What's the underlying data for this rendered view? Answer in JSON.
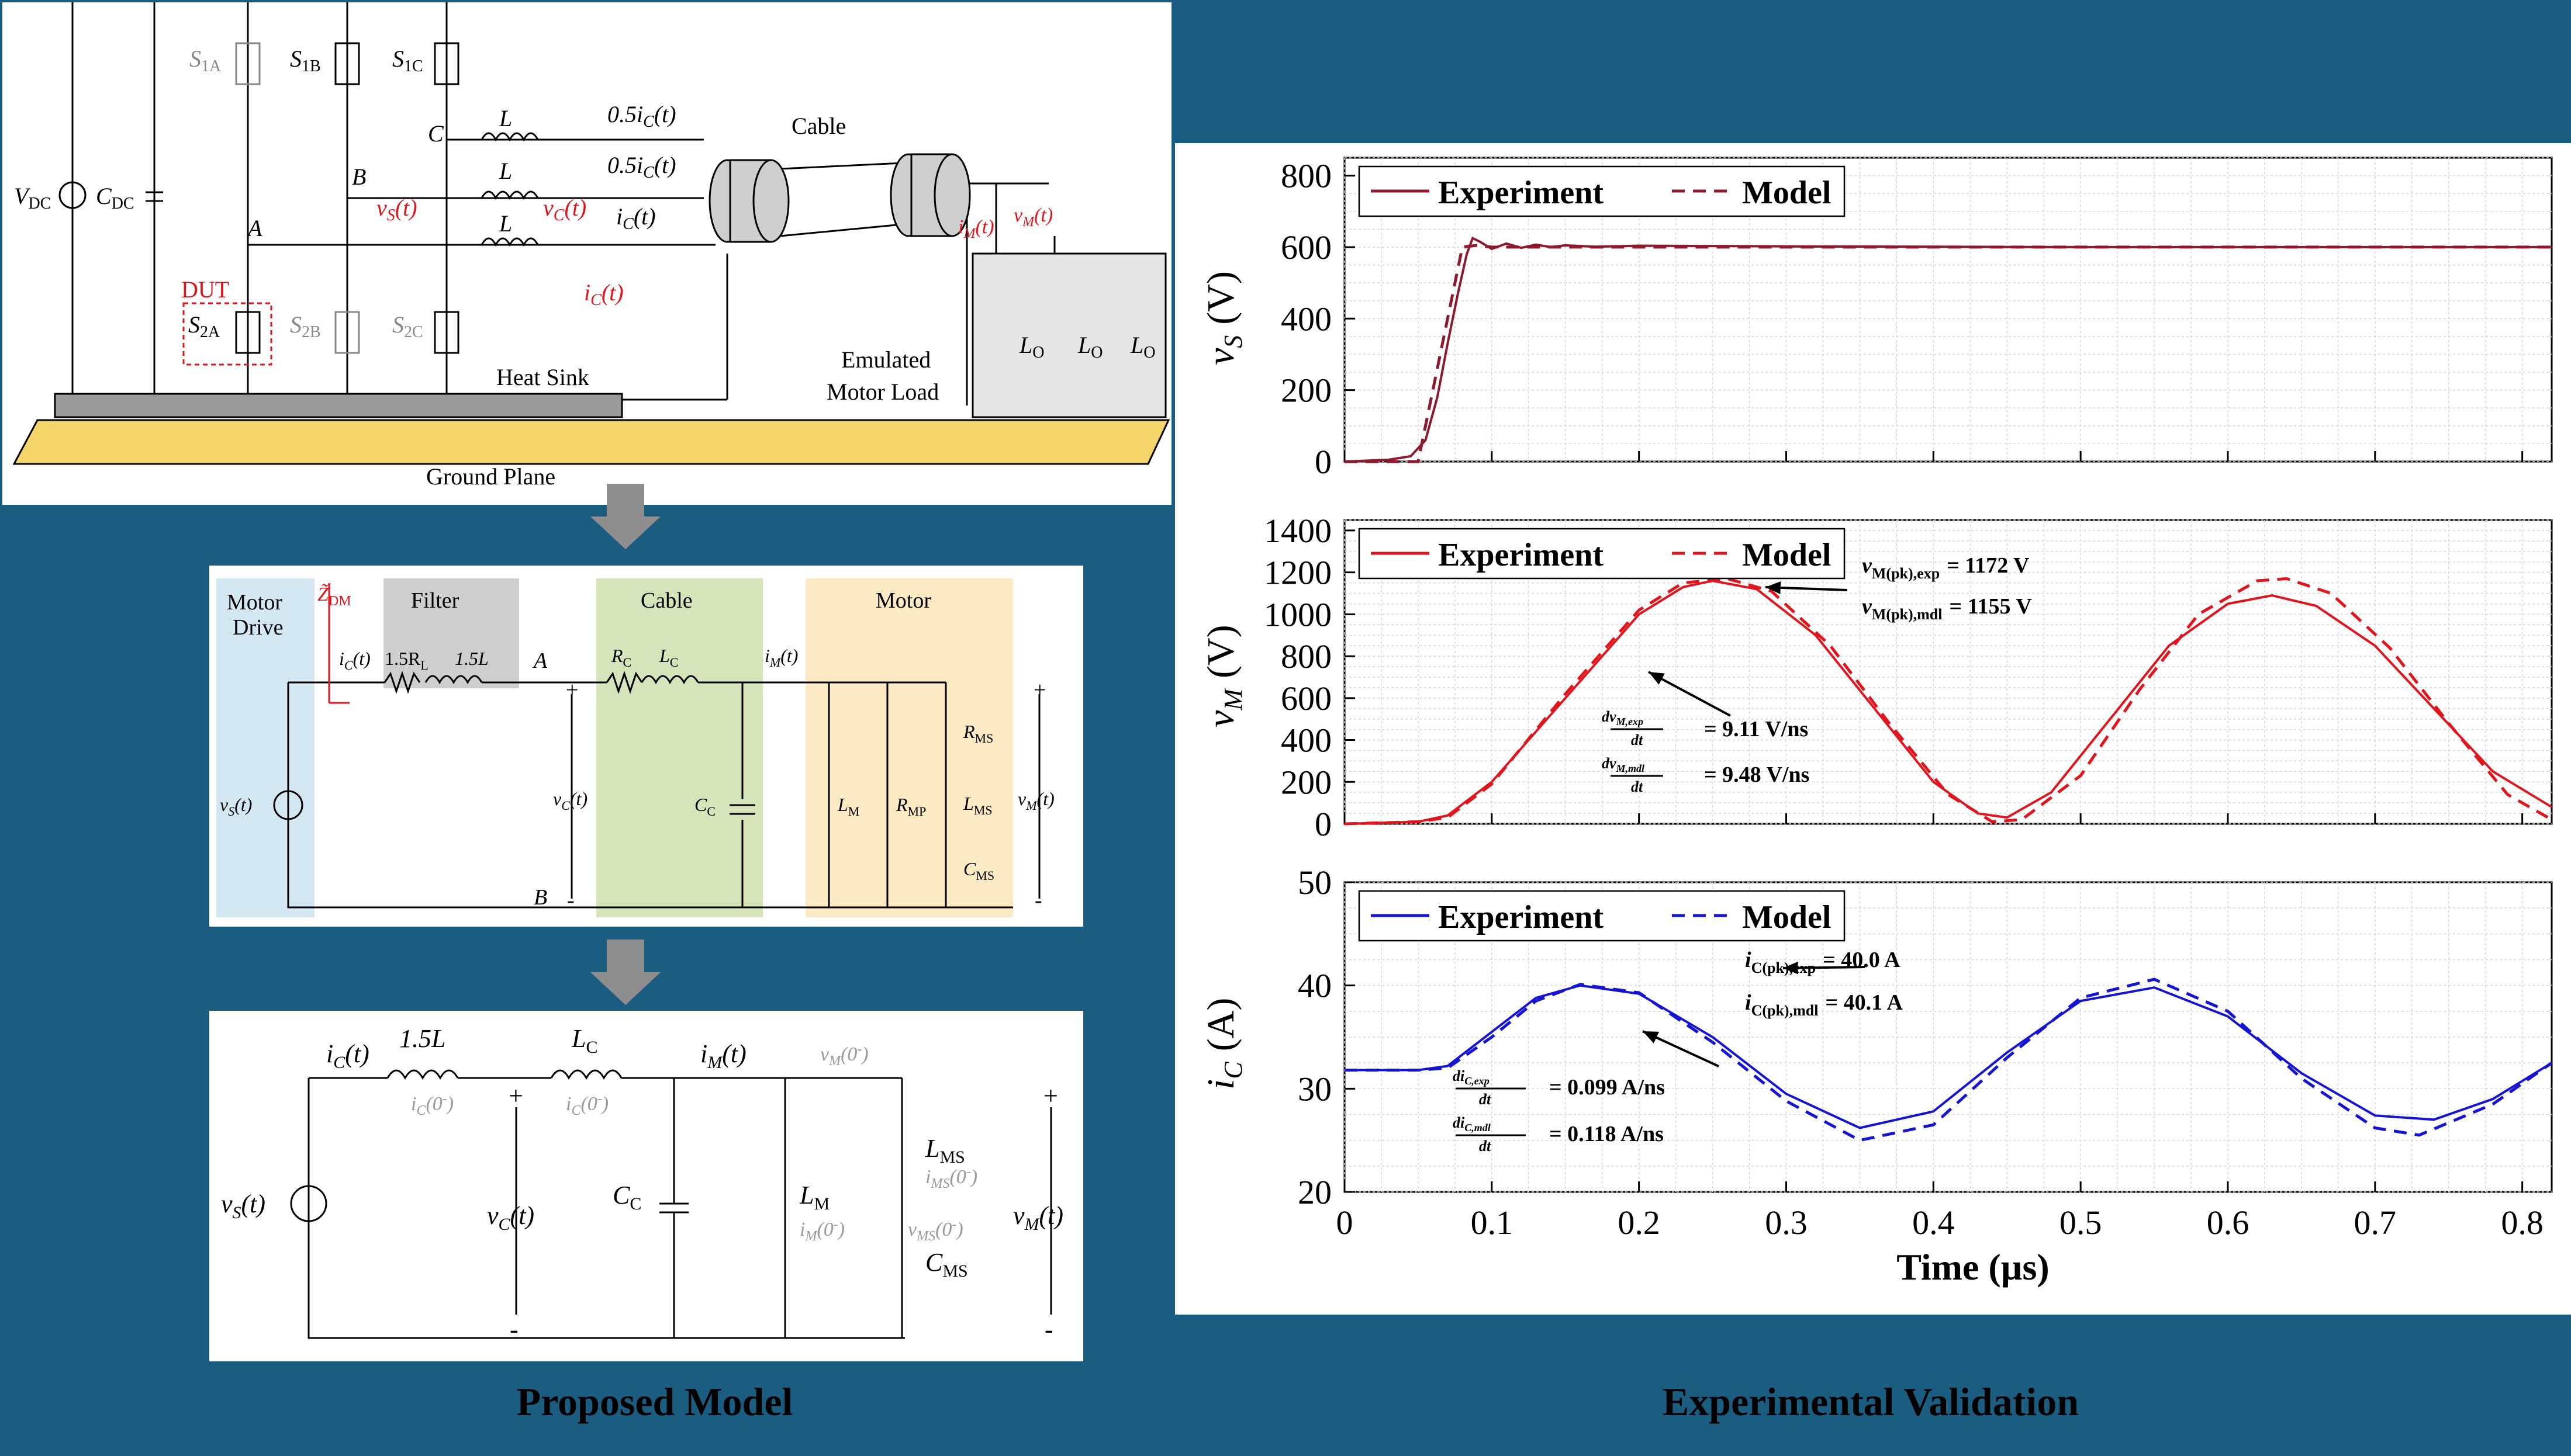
{
  "colors": {
    "background": "#1b5d80",
    "vs_color": "#8b1a2e",
    "vm_color": "#e0161e",
    "ic_color": "#1414d2",
    "annotation_red": "#e0161e",
    "drive_fill": "#d3e8f2",
    "filter_fill": "#cfcfcf",
    "cable_fill": "#d5e4b9",
    "motor_fill": "#fbeac3",
    "ground_fill": "#f5d56a"
  },
  "circuit": {
    "vdc": "V",
    "vdc_sub": "DC",
    "cdc": "C",
    "cdc_sub": "DC",
    "dut": "DUT",
    "s1a": "S",
    "s1a_sub": "1A",
    "s1b": "S",
    "s1b_sub": "1B",
    "s1c": "S",
    "s1c_sub": "1C",
    "s2a": "S",
    "s2a_sub": "2A",
    "s2b": "S",
    "s2b_sub": "2B",
    "s2c": "S",
    "s2c_sub": "2C",
    "node_a": "A",
    "node_b": "B",
    "node_c": "C",
    "inductor": "L",
    "half_ic_1": "0.5i",
    "half_ic_2": "0.5i",
    "ic_label": "i",
    "ic_red": "i",
    "vs_red": "v",
    "vc_red": "v",
    "im_red": "i",
    "vm_red": "v",
    "sub_c": "C",
    "sub_s": "S",
    "sub_m": "M",
    "of_t": "(t)",
    "cable": "Cable",
    "lo": "L",
    "lo_sub": "O",
    "heat_sink": "Heat Sink",
    "emulated_1": "Emulated",
    "emulated_2": "Motor Load",
    "ground_plane": "Ground Plane"
  },
  "model": {
    "motor_drive_1": "Motor",
    "motor_drive_2": "Drive",
    "filter": "Filter",
    "cable": "Cable",
    "motor": "Motor",
    "zdm": "Z̃",
    "zdm_sub": "DM",
    "r_filter": "1.5R",
    "r_filter_sub": "L",
    "l_filter": "1.5L",
    "node_a": "A",
    "node_b": "B",
    "rc": "R",
    "rc_sub": "C",
    "lc": "L",
    "lc_sub": "C",
    "cc": "C",
    "cc_sub": "C",
    "lm": "L",
    "lm_sub": "M",
    "rmp": "R",
    "rmp_sub": "MP",
    "rms": "R",
    "rms_sub": "MS",
    "lms": "L",
    "lms_sub": "MS",
    "cms": "C",
    "cms_sub": "MS",
    "ic": "i",
    "im": "i",
    "vs": "v",
    "vc": "v",
    "vm": "v",
    "sub_c": "C",
    "sub_m": "M",
    "sub_s": "S",
    "of_t": "(t)",
    "plus": "+",
    "minus": "-"
  },
  "reduced": {
    "ic": "i",
    "im": "i",
    "l15": "1.5L",
    "lc": "L",
    "cc": "C",
    "lm": "L",
    "lms": "L",
    "cms": "C",
    "vs": "v",
    "vc": "v",
    "vm": "v",
    "sub_c": "C",
    "sub_m": "M",
    "sub_s": "S",
    "sub_ms": "MS",
    "of_t": "(t)",
    "ic0a": "i",
    "ic0b": "i",
    "im0": "i",
    "ims0": "i",
    "vm0": "v",
    "vms0": "v",
    "zero": "(0",
    "zero_end": ")",
    "minus_sup": "-",
    "plus": "+",
    "minus": "-"
  },
  "captions": {
    "left": "Proposed Model",
    "right": "Experimental Validation"
  },
  "chart_data": [
    {
      "type": "line",
      "ylabel": "v",
      "ylabel_sub": "S",
      "ylabel_unit": "(V)",
      "ylim": [
        0,
        850
      ],
      "yticks": [
        0,
        200,
        400,
        600,
        800
      ],
      "xlim": [
        0,
        0.82
      ],
      "legend": [
        "Experiment",
        "Model"
      ],
      "legend_position": "top-left",
      "grid": true,
      "series": [
        {
          "name": "Experiment",
          "style": "solid",
          "x": [
            0,
            0.03,
            0.045,
            0.055,
            0.063,
            0.07,
            0.077,
            0.083,
            0.087,
            0.092,
            0.1,
            0.11,
            0.12,
            0.13,
            0.14,
            0.15,
            0.17,
            0.2,
            0.3,
            0.5,
            0.82
          ],
          "y": [
            0,
            5,
            15,
            60,
            180,
            330,
            470,
            580,
            625,
            615,
            595,
            610,
            598,
            607,
            600,
            605,
            601,
            604,
            602,
            600,
            600
          ]
        },
        {
          "name": "Model",
          "style": "dashed",
          "x": [
            0,
            0.05,
            0.05,
            0.08,
            0.09,
            0.1,
            0.2,
            0.5,
            0.82
          ],
          "y": [
            0,
            0,
            0,
            600,
            605,
            600,
            600,
            600,
            600
          ]
        }
      ]
    },
    {
      "type": "line",
      "ylabel": "v",
      "ylabel_sub": "M",
      "ylabel_unit": "(V)",
      "ylim": [
        0,
        1450
      ],
      "yticks": [
        0,
        200,
        400,
        600,
        800,
        1000,
        1200,
        1400
      ],
      "xlim": [
        0,
        0.82
      ],
      "legend": [
        "Experiment",
        "Model"
      ],
      "legend_position": "top-left",
      "grid": true,
      "annotations": [
        "v_M(pk),exp = 1172 V",
        "v_M(pk),mdl = 1155 V",
        "dv_M,exp/dt = 9.11 V/ns",
        "dv_M,mdl/dt = 9.48 V/ns"
      ],
      "series": [
        {
          "name": "Experiment",
          "style": "solid",
          "x": [
            0,
            0.05,
            0.07,
            0.1,
            0.15,
            0.2,
            0.23,
            0.25,
            0.28,
            0.32,
            0.36,
            0.4,
            0.43,
            0.45,
            0.48,
            0.52,
            0.56,
            0.6,
            0.63,
            0.66,
            0.7,
            0.74,
            0.78,
            0.82
          ],
          "y": [
            0,
            10,
            40,
            200,
            600,
            1000,
            1130,
            1160,
            1120,
            900,
            550,
            200,
            50,
            30,
            150,
            500,
            850,
            1050,
            1090,
            1040,
            850,
            550,
            250,
            80
          ]
        },
        {
          "name": "Model",
          "style": "dashed",
          "x": [
            0,
            0.05,
            0.07,
            0.1,
            0.15,
            0.2,
            0.23,
            0.26,
            0.29,
            0.33,
            0.37,
            0.41,
            0.44,
            0.46,
            0.5,
            0.54,
            0.58,
            0.62,
            0.64,
            0.67,
            0.71,
            0.75,
            0.79,
            0.82
          ],
          "y": [
            0,
            10,
            30,
            190,
            620,
            1020,
            1150,
            1170,
            1110,
            850,
            480,
            140,
            10,
            20,
            230,
            640,
            1000,
            1160,
            1170,
            1100,
            840,
            480,
            140,
            20
          ]
        }
      ]
    },
    {
      "type": "line",
      "xlabel": "Time (µs)",
      "ylabel": "i",
      "ylabel_sub": "C",
      "ylabel_unit": "(A)",
      "ylim": [
        20,
        50
      ],
      "yticks": [
        20,
        30,
        40,
        50
      ],
      "xlim": [
        0,
        0.82
      ],
      "xticks": [
        0,
        0.1,
        0.2,
        0.3,
        0.4,
        0.5,
        0.6,
        0.7,
        0.8
      ],
      "legend": [
        "Experiment",
        "Model"
      ],
      "legend_position": "top-left",
      "grid": true,
      "annotations": [
        "i_C(pk),exp = 40.0 A",
        "i_C(pk),mdl = 40.1 A",
        "di_C,exp/dt = 0.099 A/ns",
        "di_C,mdl/dt = 0.118 A/ns"
      ],
      "series": [
        {
          "name": "Experiment",
          "style": "solid",
          "x": [
            0,
            0.05,
            0.07,
            0.1,
            0.13,
            0.16,
            0.2,
            0.25,
            0.3,
            0.35,
            0.4,
            0.45,
            0.5,
            0.55,
            0.6,
            0.65,
            0.7,
            0.74,
            0.78,
            0.82
          ],
          "y": [
            31.8,
            31.8,
            32.2,
            35.5,
            38.8,
            40.0,
            39.2,
            35.0,
            29.5,
            26.2,
            27.8,
            33.5,
            38.5,
            39.8,
            37.0,
            31.5,
            27.4,
            27.0,
            29.0,
            32.5
          ]
        },
        {
          "name": "Model",
          "style": "dashed",
          "x": [
            0,
            0.05,
            0.07,
            0.1,
            0.13,
            0.16,
            0.2,
            0.25,
            0.3,
            0.35,
            0.4,
            0.45,
            0.5,
            0.55,
            0.6,
            0.65,
            0.7,
            0.73,
            0.78,
            0.82
          ],
          "y": [
            31.8,
            31.8,
            32.0,
            35.0,
            38.5,
            40.1,
            39.3,
            34.5,
            28.8,
            25.0,
            26.5,
            33.0,
            38.8,
            40.6,
            37.5,
            31.0,
            26.2,
            25.5,
            28.5,
            32.5
          ]
        }
      ]
    }
  ],
  "plot_text": {
    "legend_exp": "Experiment",
    "legend_mdl": "Model",
    "xlabel": "Time (µs)",
    "vm_pk_exp_lhs": "v",
    "vm_pk_exp_sub": "M(pk),exp",
    "vm_pk_exp_val": "= 1172 V",
    "vm_pk_mdl_lhs": "v",
    "vm_pk_mdl_sub": "M(pk),mdl",
    "vm_pk_mdl_val": "= 1155 V",
    "dv_exp_num": "dv",
    "dv_exp_sub": "M,exp",
    "dv_mdl_num": "dv",
    "dv_mdl_sub": "M,mdl",
    "dt": "dt",
    "dv_exp_val": "= 9.11 V/ns",
    "dv_mdl_val": "= 9.48 V/ns",
    "ic_pk_exp_lhs": "i",
    "ic_pk_exp_sub": "C(pk),exp",
    "ic_pk_exp_val": "= 40.0 A",
    "ic_pk_mdl_lhs": "i",
    "ic_pk_mdl_sub": "C(pk),mdl",
    "ic_pk_mdl_val": "= 40.1 A",
    "di_exp_num": "di",
    "di_exp_sub": "C,exp",
    "di_mdl_num": "di",
    "di_mdl_sub": "C,mdl",
    "di_exp_val": "= 0.099 A/ns",
    "di_mdl_val": "= 0.118 A/ns"
  }
}
